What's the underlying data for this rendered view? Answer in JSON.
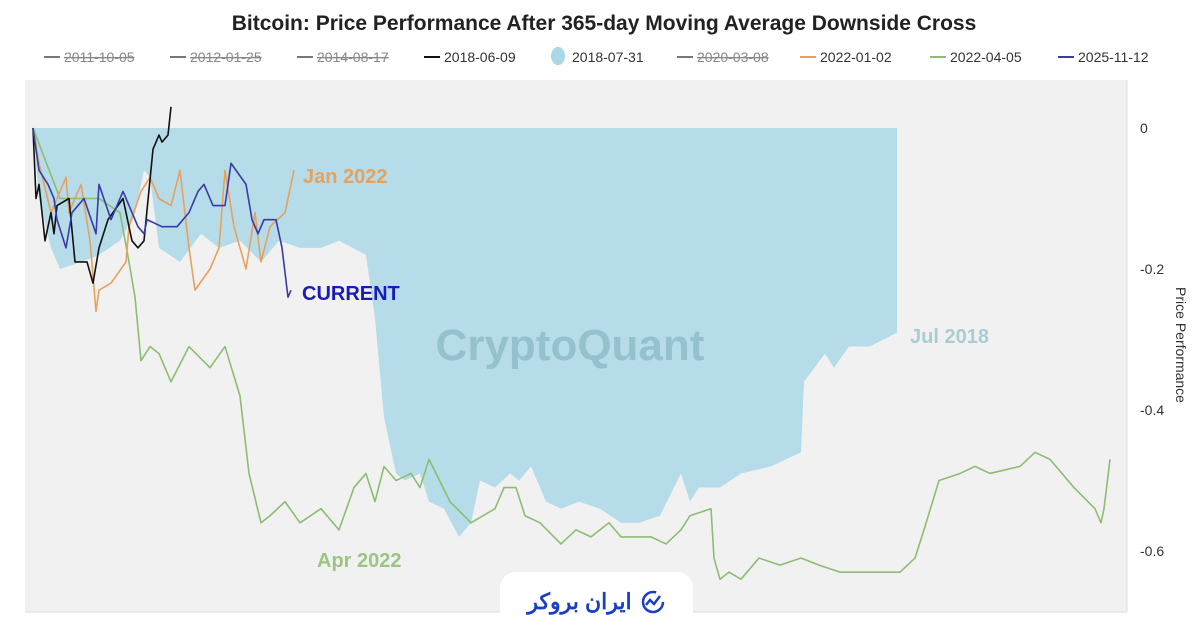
{
  "chart_data": {
    "type": "line",
    "title": "Bitcoin: Price Performance After 365-day Moving Average Downside Cross",
    "xlabel": "",
    "ylabel": "Price Performance",
    "ylim": [
      -0.68,
      0.07
    ],
    "yticks": [
      "0",
      "-0.2",
      "-0.4",
      "-0.6"
    ],
    "ytick_values": [
      0,
      -0.2,
      -0.4,
      -0.6
    ],
    "y_axis_side": "right",
    "grid": false,
    "legend_position": "top",
    "watermark": "CryptoQuant",
    "legend": [
      {
        "name": "2011-10-05",
        "color": "#777777",
        "hidden": true,
        "marker": "line"
      },
      {
        "name": "2012-01-25",
        "color": "#777777",
        "hidden": true,
        "marker": "line"
      },
      {
        "name": "2014-08-17",
        "color": "#777777",
        "hidden": true,
        "marker": "line"
      },
      {
        "name": "2018-06-09",
        "color": "#111111",
        "hidden": false,
        "marker": "line"
      },
      {
        "name": "2018-07-31",
        "color": "#a8d8e6",
        "hidden": false,
        "marker": "area"
      },
      {
        "name": "2020-03-08",
        "color": "#777777",
        "hidden": true,
        "marker": "line"
      },
      {
        "name": "2022-01-02",
        "color": "#e7a15e",
        "hidden": false,
        "marker": "line"
      },
      {
        "name": "2022-04-05",
        "color": "#8cbd72",
        "hidden": false,
        "marker": "line"
      },
      {
        "name": "2025-11-12",
        "color": "#3a3aa8",
        "hidden": false,
        "marker": "line"
      }
    ],
    "series": [
      {
        "name": "2018-07-31",
        "type": "area",
        "color": "#b5dce8",
        "points": [
          [
            0,
            0
          ],
          [
            2,
            -0.1
          ],
          [
            6,
            -0.17
          ],
          [
            9,
            -0.2
          ],
          [
            16,
            -0.19
          ],
          [
            22,
            -0.18
          ],
          [
            29,
            -0.16
          ],
          [
            34,
            -0.12
          ],
          [
            37,
            -0.06
          ],
          [
            39,
            -0.07
          ],
          [
            42,
            -0.17
          ],
          [
            49,
            -0.19
          ],
          [
            56,
            -0.15
          ],
          [
            62,
            -0.17
          ],
          [
            69,
            -0.16
          ],
          [
            76,
            -0.19
          ],
          [
            82,
            -0.16
          ],
          [
            89,
            -0.17
          ],
          [
            96,
            -0.17
          ],
          [
            102,
            -0.16
          ],
          [
            111,
            -0.18
          ],
          [
            114,
            -0.27
          ],
          [
            117,
            -0.41
          ],
          [
            121,
            -0.49
          ],
          [
            124,
            -0.5
          ],
          [
            129,
            -0.49
          ],
          [
            132,
            -0.53
          ],
          [
            137,
            -0.54
          ],
          [
            142,
            -0.58
          ],
          [
            146,
            -0.56
          ],
          [
            149,
            -0.5
          ],
          [
            154,
            -0.51
          ],
          [
            159,
            -0.49
          ],
          [
            162,
            -0.5
          ],
          [
            166,
            -0.48
          ],
          [
            171,
            -0.53
          ],
          [
            176,
            -0.54
          ],
          [
            182,
            -0.53
          ],
          [
            189,
            -0.54
          ],
          [
            196,
            -0.56
          ],
          [
            202,
            -0.56
          ],
          [
            209,
            -0.55
          ],
          [
            216,
            -0.49
          ],
          [
            219,
            -0.53
          ],
          [
            222,
            -0.51
          ],
          [
            229,
            -0.51
          ],
          [
            236,
            -0.49
          ],
          [
            246,
            -0.48
          ],
          [
            256,
            -0.46
          ],
          [
            257,
            -0.36
          ],
          [
            264,
            -0.32
          ],
          [
            267,
            -0.34
          ],
          [
            272,
            -0.31
          ],
          [
            279,
            -0.31
          ],
          [
            288,
            -0.29
          ]
        ]
      },
      {
        "name": "2022-04-05",
        "type": "line",
        "color": "#8cbd72",
        "points": [
          [
            0,
            0
          ],
          [
            9,
            -0.1
          ],
          [
            22,
            -0.1
          ],
          [
            29,
            -0.12
          ],
          [
            32,
            -0.19
          ],
          [
            34,
            -0.24
          ],
          [
            36,
            -0.33
          ],
          [
            39,
            -0.31
          ],
          [
            42,
            -0.32
          ],
          [
            46,
            -0.36
          ],
          [
            52,
            -0.31
          ],
          [
            59,
            -0.34
          ],
          [
            64,
            -0.31
          ],
          [
            69,
            -0.38
          ],
          [
            72,
            -0.49
          ],
          [
            76,
            -0.56
          ],
          [
            79,
            -0.55
          ],
          [
            84,
            -0.53
          ],
          [
            89,
            -0.56
          ],
          [
            96,
            -0.54
          ],
          [
            102,
            -0.57
          ],
          [
            107,
            -0.51
          ],
          [
            111,
            -0.49
          ],
          [
            114,
            -0.53
          ],
          [
            117,
            -0.48
          ],
          [
            121,
            -0.5
          ],
          [
            126,
            -0.49
          ],
          [
            129,
            -0.51
          ],
          [
            132,
            -0.47
          ],
          [
            139,
            -0.53
          ],
          [
            146,
            -0.56
          ],
          [
            154,
            -0.54
          ],
          [
            157,
            -0.51
          ],
          [
            161,
            -0.51
          ],
          [
            164,
            -0.55
          ],
          [
            169,
            -0.56
          ],
          [
            176,
            -0.59
          ],
          [
            181,
            -0.57
          ],
          [
            186,
            -0.58
          ],
          [
            192,
            -0.56
          ],
          [
            196,
            -0.58
          ],
          [
            201,
            -0.58
          ],
          [
            206,
            -0.58
          ],
          [
            211,
            -0.59
          ],
          [
            216,
            -0.57
          ],
          [
            219,
            -0.55
          ],
          [
            226,
            -0.54
          ],
          [
            227,
            -0.61
          ],
          [
            229,
            -0.64
          ],
          [
            232,
            -0.63
          ],
          [
            236,
            -0.64
          ],
          [
            242,
            -0.61
          ],
          [
            249,
            -0.62
          ],
          [
            256,
            -0.61
          ],
          [
            262,
            -0.62
          ],
          [
            269,
            -0.63
          ],
          [
            276,
            -0.63
          ],
          [
            282,
            -0.63
          ],
          [
            289,
            -0.63
          ],
          [
            294,
            -0.61
          ],
          [
            297,
            -0.57
          ],
          [
            302,
            -0.5
          ],
          [
            309,
            -0.49
          ],
          [
            314,
            -0.48
          ],
          [
            319,
            -0.49
          ],
          [
            329,
            -0.48
          ],
          [
            334,
            -0.46
          ],
          [
            339,
            -0.47
          ],
          [
            347,
            -0.51
          ],
          [
            354,
            -0.54
          ],
          [
            356,
            -0.56
          ],
          [
            357,
            -0.54
          ],
          [
            359,
            -0.47
          ]
        ]
      },
      {
        "name": "2022-01-02",
        "type": "line",
        "color": "#e7a15e",
        "points": [
          [
            0,
            0
          ],
          [
            2,
            -0.05
          ],
          [
            6,
            -0.12
          ],
          [
            11,
            -0.07
          ],
          [
            12,
            -0.12
          ],
          [
            16,
            -0.08
          ],
          [
            19,
            -0.16
          ],
          [
            21,
            -0.26
          ],
          [
            22,
            -0.23
          ],
          [
            26,
            -0.22
          ],
          [
            31,
            -0.19
          ],
          [
            32,
            -0.14
          ],
          [
            36,
            -0.09
          ],
          [
            39,
            -0.07
          ],
          [
            42,
            -0.1
          ],
          [
            46,
            -0.11
          ],
          [
            49,
            -0.06
          ],
          [
            52,
            -0.17
          ],
          [
            54,
            -0.23
          ],
          [
            59,
            -0.2
          ],
          [
            62,
            -0.17
          ],
          [
            64,
            -0.06
          ],
          [
            67,
            -0.14
          ],
          [
            71,
            -0.2
          ],
          [
            74,
            -0.12
          ],
          [
            76,
            -0.19
          ],
          [
            79,
            -0.14
          ],
          [
            84,
            -0.12
          ],
          [
            87,
            -0.06
          ]
        ]
      },
      {
        "name": "2018-06-09",
        "type": "line",
        "color": "#111111",
        "points": [
          [
            0,
            0
          ],
          [
            1,
            -0.1
          ],
          [
            2,
            -0.08
          ],
          [
            4,
            -0.16
          ],
          [
            6,
            -0.12
          ],
          [
            7,
            -0.15
          ],
          [
            8,
            -0.11
          ],
          [
            12,
            -0.1
          ],
          [
            14,
            -0.19
          ],
          [
            18,
            -0.19
          ],
          [
            20,
            -0.22
          ],
          [
            22,
            -0.17
          ],
          [
            25,
            -0.13
          ],
          [
            30,
            -0.1
          ],
          [
            33,
            -0.16
          ],
          [
            35,
            -0.17
          ],
          [
            37,
            -0.16
          ],
          [
            40,
            -0.03
          ],
          [
            42,
            -0.01
          ],
          [
            43,
            -0.02
          ],
          [
            45,
            -0.01
          ],
          [
            46,
            0.03
          ]
        ]
      },
      {
        "name": "2025-11-12",
        "type": "line",
        "color": "#3a3aa8",
        "points": [
          [
            0,
            0
          ],
          [
            2,
            -0.06
          ],
          [
            5,
            -0.08
          ],
          [
            7,
            -0.1
          ],
          [
            8,
            -0.13
          ],
          [
            11,
            -0.17
          ],
          [
            13,
            -0.12
          ],
          [
            15,
            -0.11
          ],
          [
            17,
            -0.1
          ],
          [
            21,
            -0.15
          ],
          [
            22,
            -0.08
          ],
          [
            26,
            -0.13
          ],
          [
            30,
            -0.09
          ],
          [
            31,
            -0.1
          ],
          [
            35,
            -0.14
          ],
          [
            37,
            -0.15
          ],
          [
            38,
            -0.13
          ],
          [
            43,
            -0.14
          ],
          [
            48,
            -0.14
          ],
          [
            52,
            -0.12
          ],
          [
            55,
            -0.09
          ],
          [
            57,
            -0.08
          ],
          [
            60,
            -0.11
          ],
          [
            64,
            -0.11
          ],
          [
            66,
            -0.05
          ],
          [
            71,
            -0.08
          ],
          [
            73,
            -0.13
          ],
          [
            75,
            -0.15
          ],
          [
            77,
            -0.13
          ],
          [
            81,
            -0.13
          ],
          [
            83,
            -0.17
          ],
          [
            85,
            -0.24
          ],
          [
            86,
            -0.23
          ]
        ]
      }
    ],
    "annotations": [
      {
        "text": "Jan 2022",
        "color": "#e7a15e",
        "series": "2022-01-02"
      },
      {
        "text": "CURRENT",
        "color": "#1a1ab8",
        "series": "2025-11-12"
      },
      {
        "text": "Jul 2018",
        "color": "#a9cdd6",
        "series": "2018-07-31"
      },
      {
        "text": "Apr 2022",
        "color": "#9cc585",
        "series": "2022-04-05"
      }
    ]
  },
  "branding": {
    "logo_text": "ایران بروکر",
    "logo_color": "#1b3fc4"
  }
}
